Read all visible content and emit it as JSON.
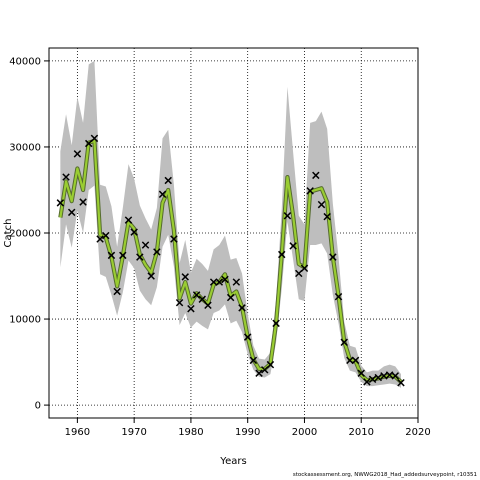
{
  "credit": "stockassessment.org, NWWG2018_Had_addedsurveypoint, r10351",
  "chart_data": {
    "type": "line",
    "xlabel": "Years",
    "ylabel": "Catch",
    "xlim": [
      1955,
      2020
    ],
    "ylim": [
      -1500,
      41500
    ],
    "xticks": [
      1960,
      1970,
      1980,
      1990,
      2000,
      2010,
      2020
    ],
    "yticks": [
      0,
      10000,
      20000,
      30000,
      40000
    ],
    "grid": true,
    "colors": {
      "band": "#bebebe",
      "line": "#9acd32",
      "line_edge": "#556b2f",
      "marker": "#000000"
    },
    "years": [
      1957,
      1958,
      1959,
      1960,
      1961,
      1962,
      1963,
      1964,
      1965,
      1966,
      1967,
      1968,
      1969,
      1970,
      1971,
      1972,
      1973,
      1974,
      1975,
      1976,
      1977,
      1978,
      1979,
      1980,
      1981,
      1982,
      1983,
      1984,
      1985,
      1986,
      1987,
      1988,
      1989,
      1990,
      1991,
      1992,
      1993,
      1994,
      1995,
      1996,
      1997,
      1998,
      1999,
      2000,
      2001,
      2002,
      2003,
      2004,
      2005,
      2006,
      2007,
      2008,
      2009,
      2010,
      2011,
      2012,
      2013,
      2014,
      2015,
      2016,
      2017
    ],
    "series": [
      {
        "name": "estimate",
        "values": [
          21800,
          26000,
          23700,
          27500,
          25000,
          30500,
          30700,
          19800,
          19500,
          17200,
          13800,
          17300,
          21300,
          20500,
          17500,
          16300,
          15400,
          17800,
          23500,
          25000,
          20300,
          12400,
          14300,
          11800,
          13000,
          12300,
          11800,
          14000,
          14300,
          15200,
          12700,
          13200,
          11400,
          7900,
          5300,
          4200,
          4200,
          4800,
          9500,
          17500,
          26500,
          22000,
          16400,
          16000,
          24800,
          25000,
          25200,
          23600,
          17200,
          12700,
          7400,
          5300,
          5100,
          3500,
          2900,
          3000,
          3100,
          3300,
          3400,
          3300,
          2700
        ]
      },
      {
        "name": "lower",
        "values": [
          16000,
          21000,
          18300,
          22600,
          20000,
          25000,
          25500,
          15200,
          14900,
          12800,
          10400,
          13100,
          16800,
          15900,
          13300,
          12300,
          11600,
          13700,
          18400,
          19800,
          16100,
          9300,
          10700,
          9000,
          9700,
          9200,
          8800,
          10700,
          11000,
          11700,
          9500,
          9800,
          8500,
          5900,
          4100,
          3300,
          3200,
          3600,
          7300,
          13500,
          21300,
          16900,
          12300,
          12100,
          18600,
          18600,
          18800,
          17600,
          12800,
          9500,
          5500,
          4000,
          3800,
          2700,
          2200,
          2200,
          2300,
          2400,
          2500,
          2400,
          2000
        ]
      },
      {
        "name": "upper",
        "values": [
          29500,
          33800,
          30200,
          35800,
          32800,
          39600,
          40000,
          25600,
          25400,
          23100,
          18400,
          22900,
          28000,
          26300,
          23200,
          21700,
          20400,
          22900,
          31000,
          32000,
          25600,
          16500,
          19200,
          15400,
          17000,
          16400,
          15600,
          18100,
          18600,
          19700,
          16900,
          17100,
          15300,
          10600,
          6900,
          5400,
          5300,
          6100,
          12200,
          22800,
          37000,
          29400,
          22000,
          21000,
          32800,
          33000,
          34100,
          32100,
          23400,
          17200,
          9700,
          6900,
          6700,
          4600,
          3800,
          4000,
          4000,
          4500,
          4700,
          4500,
          3600
        ]
      }
    ],
    "observed": [
      23500,
      26500,
      22400,
      29200,
      23600,
      30400,
      31000,
      19300,
      19700,
      17400,
      13200,
      17400,
      21500,
      20100,
      17200,
      18600,
      15000,
      17800,
      24500,
      26100,
      19300,
      11900,
      14900,
      11200,
      12800,
      12300,
      11600,
      14300,
      14300,
      14600,
      12500,
      14300,
      11300,
      7900,
      5200,
      3700,
      4100,
      4700,
      9500,
      17500,
      22000,
      18500,
      15300,
      15900,
      24900,
      26700,
      23300,
      21900,
      17200,
      12600,
      7300,
      5200,
      5200,
      3700,
      2700,
      3000,
      3200,
      3400,
      3500,
      3400,
      2600
    ]
  }
}
